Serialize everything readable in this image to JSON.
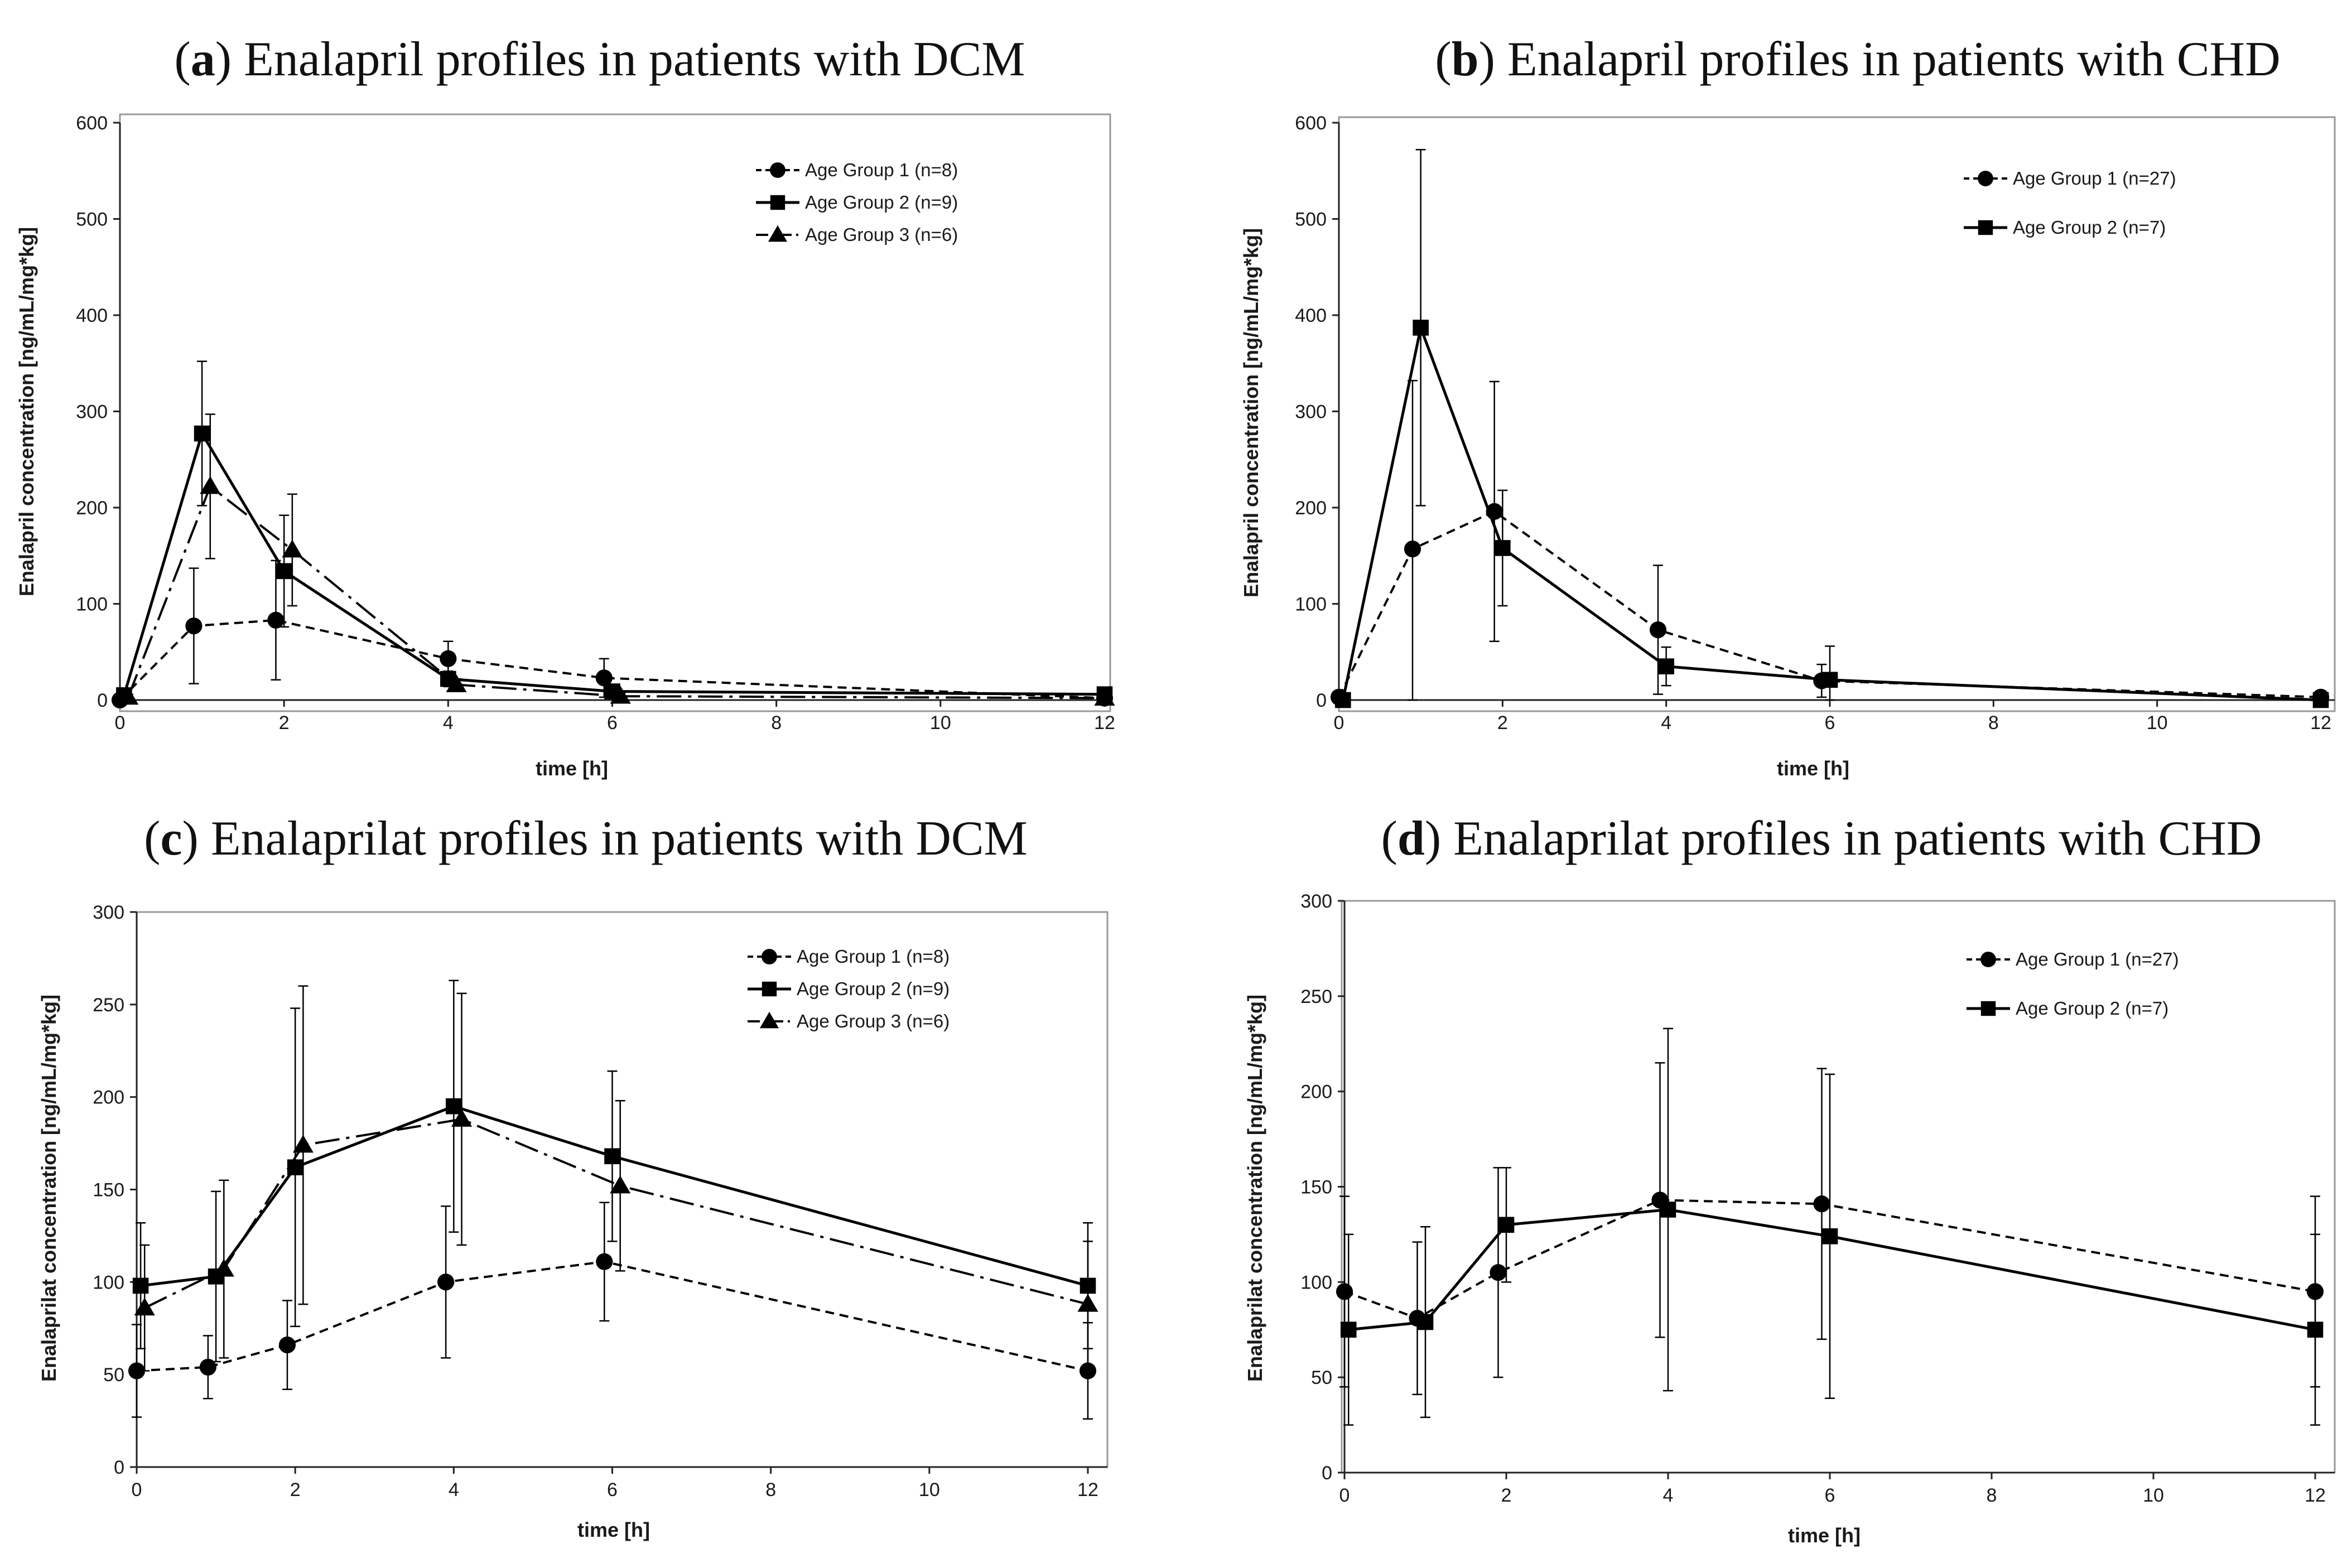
{
  "figure": {
    "series_styles": [
      {
        "marker": "circle",
        "dash": "16,10",
        "color": "#000000"
      },
      {
        "marker": "square",
        "dash": "none",
        "color": "#000000"
      },
      {
        "marker": "triangle",
        "dash": "44,12,6,12",
        "color": "#000000"
      }
    ]
  },
  "chart_data": [
    {
      "type": "line",
      "title_letter": "a",
      "title_text": "Enalapril profiles in patients with DCM",
      "title_open": "(",
      "title_close": ")",
      "xlabel": "time [h]",
      "ylabel": "Enalapril concentration [ng/mL/mg*kg]",
      "xlim": [
        0,
        12
      ],
      "ylim": [
        0,
        600
      ],
      "xticks": [
        0,
        2,
        4,
        6,
        8,
        10,
        12
      ],
      "yticks": [
        0,
        100,
        200,
        300,
        400,
        500,
        600
      ],
      "legend_position": "top-right",
      "series": [
        {
          "name": "Age Group 1 (n=8)",
          "x": [
            0,
            0.9,
            1.9,
            4,
            5.9,
            12
          ],
          "y": [
            0,
            77,
            83,
            43,
            23,
            2
          ],
          "err": [
            0,
            60,
            62,
            18,
            20,
            3
          ]
        },
        {
          "name": "Age Group 2 (n=9)",
          "x": [
            0.05,
            1,
            2,
            4,
            6,
            12
          ],
          "y": [
            5,
            277,
            134,
            22,
            9,
            6
          ],
          "err": [
            5,
            75,
            58,
            8,
            6,
            3
          ]
        },
        {
          "name": "Age Group 3 (n=6)",
          "x": [
            0.1,
            1.1,
            2.1,
            4.1,
            6.1,
            12
          ],
          "y": [
            3,
            222,
            156,
            16,
            4,
            2
          ],
          "err": [
            3,
            75,
            58,
            6,
            3,
            2
          ]
        }
      ]
    },
    {
      "type": "line",
      "title_letter": "b",
      "title_text": "Enalapril profiles in patients with CHD",
      "title_open": "(",
      "title_close": ")",
      "xlabel": "time [h]",
      "ylabel": "Enalapril concentration [ng/mL/mg*kg]",
      "xlim": [
        0,
        12
      ],
      "ylim": [
        0,
        600
      ],
      "xticks": [
        0,
        2,
        4,
        6,
        8,
        10,
        12
      ],
      "yticks": [
        0,
        100,
        200,
        300,
        400,
        500,
        600
      ],
      "legend_position": "top-right",
      "series": [
        {
          "name": "Age Group 1 (n=27)",
          "x": [
            0,
            0.9,
            1.9,
            3.9,
            5.9,
            12
          ],
          "y": [
            3,
            157,
            196,
            73,
            20,
            3
          ],
          "err": [
            3,
            175,
            135,
            67,
            17,
            3
          ]
        },
        {
          "name": "Age Group 2 (n=7)",
          "x": [
            0.05,
            1,
            2,
            4,
            6,
            12
          ],
          "y": [
            0,
            387,
            158,
            35,
            21,
            0
          ],
          "err": [
            0,
            185,
            60,
            20,
            35,
            3
          ]
        }
      ]
    },
    {
      "type": "line",
      "title_letter": "c",
      "title_text": "Enalaprilat profiles in patients with DCM",
      "title_open": "(",
      "title_close": ")",
      "xlabel": "time [h]",
      "ylabel": "Enalaprilat concentration [ng/mL/mg*kg]",
      "xlim": [
        0,
        12
      ],
      "ylim": [
        0,
        300
      ],
      "xticks": [
        0,
        2,
        4,
        6,
        8,
        10,
        12
      ],
      "yticks": [
        0,
        50,
        100,
        150,
        200,
        250,
        300
      ],
      "legend_position": "top-right",
      "series": [
        {
          "name": "Age Group 1 (n=8)",
          "x": [
            0,
            0.9,
            1.9,
            3.9,
            5.9,
            12
          ],
          "y": [
            52,
            54,
            66,
            100,
            111,
            52
          ],
          "err": [
            25,
            17,
            24,
            41,
            32,
            26
          ]
        },
        {
          "name": "Age Group 2 (n=9)",
          "x": [
            0.05,
            1,
            2,
            4,
            6,
            12
          ],
          "y": [
            98,
            103,
            162,
            195,
            168,
            98
          ],
          "err": [
            34,
            46,
            86,
            68,
            46,
            34
          ]
        },
        {
          "name": "Age Group 3 (n=6)",
          "x": [
            0.1,
            1.1,
            2.1,
            4.1,
            6.1,
            12
          ],
          "y": [
            86,
            107,
            174,
            188,
            152,
            88
          ],
          "err": [
            34,
            48,
            86,
            68,
            46,
            34
          ]
        }
      ]
    },
    {
      "type": "line",
      "title_letter": "d",
      "title_text": "Enalaprilat profiles in patients with CHD",
      "title_open": "(",
      "title_close": ")",
      "xlabel": "time [h]",
      "ylabel": "Enalaprilat concentration [ng/mL/mg*kg]",
      "xlim": [
        0,
        12
      ],
      "ylim": [
        0,
        300
      ],
      "xticks": [
        0,
        2,
        4,
        6,
        8,
        10,
        12
      ],
      "yticks": [
        0,
        50,
        100,
        150,
        200,
        250,
        300
      ],
      "legend_position": "top-right",
      "series": [
        {
          "name": "Age Group 1 (n=27)",
          "x": [
            0,
            0.9,
            1.9,
            3.9,
            5.9,
            12
          ],
          "y": [
            95,
            81,
            105,
            143,
            141,
            95
          ],
          "err": [
            50,
            40,
            55,
            72,
            71,
            50
          ]
        },
        {
          "name": "Age Group 2 (n=7)",
          "x": [
            0.05,
            1,
            2,
            4,
            6,
            12
          ],
          "y": [
            75,
            79,
            130,
            138,
            124,
            75
          ],
          "err": [
            50,
            50,
            30,
            95,
            85,
            50
          ]
        }
      ]
    }
  ]
}
